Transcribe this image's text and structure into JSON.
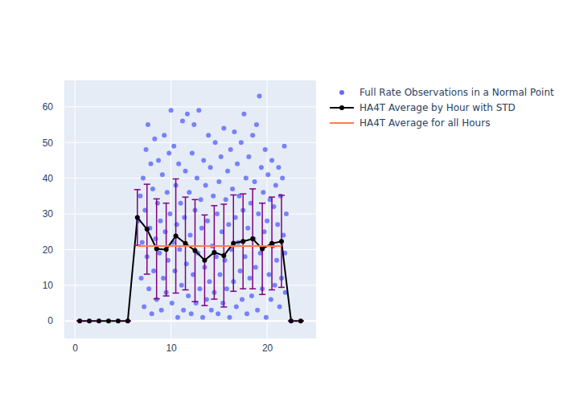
{
  "chart_data": {
    "type": "scatter",
    "xlim": [
      -1.1,
      25.1
    ],
    "xticks": [
      0,
      10,
      20
    ],
    "ylim": [
      -4.7,
      67.4
    ],
    "yticks": [
      0,
      10,
      20,
      30,
      40,
      50,
      60
    ],
    "grid": true,
    "legend": "outside-right",
    "series": [
      {
        "name": "Full Rate Observations in a Normal Point",
        "type": "scatter",
        "marker": "circle",
        "color": "#636efa",
        "x": [
          6.6,
          6.8,
          6.9,
          7.0,
          7.1,
          7.2,
          7.3,
          7.4,
          7.5,
          7.6,
          7.7,
          7.8,
          7.9,
          8.0,
          8.1,
          8.2,
          8.3,
          8.4,
          8.5,
          8.6,
          8.7,
          8.8,
          8.9,
          9.0,
          9.1,
          9.2,
          9.3,
          9.4,
          9.5,
          9.6,
          9.7,
          9.8,
          9.9,
          10.0,
          10.1,
          10.2,
          10.3,
          10.4,
          10.5,
          10.6,
          10.7,
          10.8,
          10.9,
          11.0,
          11.1,
          11.2,
          11.3,
          11.4,
          11.5,
          11.6,
          11.7,
          11.8,
          11.9,
          12.0,
          12.1,
          12.2,
          12.3,
          12.4,
          12.5,
          12.6,
          12.7,
          12.8,
          12.9,
          13.0,
          13.1,
          13.2,
          13.3,
          13.4,
          13.5,
          13.6,
          13.7,
          13.8,
          13.9,
          14.0,
          14.1,
          14.2,
          14.3,
          14.4,
          14.5,
          14.6,
          14.7,
          14.8,
          14.9,
          15.0,
          15.1,
          15.2,
          15.3,
          15.4,
          15.5,
          15.6,
          15.7,
          15.8,
          15.9,
          16.0,
          16.1,
          16.2,
          16.3,
          16.4,
          16.5,
          16.6,
          16.7,
          16.8,
          16.9,
          17.0,
          17.1,
          17.2,
          17.3,
          17.4,
          17.5,
          17.6,
          17.7,
          17.8,
          17.9,
          18.0,
          18.1,
          18.2,
          18.3,
          18.4,
          18.5,
          18.6,
          18.7,
          18.8,
          18.9,
          19.0,
          19.1,
          19.2,
          19.3,
          19.4,
          19.5,
          19.6,
          19.7,
          19.8,
          19.9,
          20.0,
          20.1,
          20.2,
          20.3,
          20.4,
          20.5,
          20.6,
          20.7,
          20.8,
          20.9,
          21.0,
          21.1,
          21.2,
          21.3,
          21.4,
          21.5,
          21.6,
          21.7,
          21.8,
          21.9,
          22.0,
          21.85
        ],
        "values": [
          28,
          35,
          12,
          22,
          40,
          4,
          31,
          48,
          18,
          55,
          9,
          26,
          44,
          2,
          37,
          14,
          51,
          23,
          6,
          33,
          45,
          19,
          28,
          3,
          41,
          12,
          52,
          25,
          8,
          36,
          17,
          47,
          30,
          59,
          5,
          22,
          49,
          14,
          38,
          27,
          1,
          44,
          20,
          33,
          10,
          56,
          3,
          29,
          42,
          16,
          58,
          7,
          36,
          24,
          2,
          47,
          13,
          55,
          31,
          5,
          40,
          19,
          59,
          9,
          34,
          26,
          1,
          45,
          15,
          38,
          6,
          28,
          52,
          11,
          43,
          3,
          21,
          35,
          8,
          50,
          18,
          30,
          2,
          39,
          13,
          46,
          25,
          5,
          54,
          17,
          34,
          9,
          42,
          27,
          1,
          48,
          20,
          37,
          11,
          53,
          29,
          4,
          44,
          22,
          35,
          14,
          50,
          6,
          31,
          58,
          18,
          40,
          2,
          26,
          46,
          12,
          33,
          7,
          52,
          23,
          39,
          15,
          55,
          3,
          30,
          63,
          19,
          43,
          9,
          36,
          25,
          48,
          1,
          28,
          41,
          13,
          34,
          6,
          45,
          21,
          32,
          10,
          38,
          17,
          27,
          43,
          4,
          35,
          12,
          40,
          24,
          49,
          8,
          30,
          19
        ]
      },
      {
        "name": "HA4T Average by Hour with STD",
        "type": "line",
        "marker": "circle",
        "color": "#000000",
        "x": [
          0.5,
          1.5,
          2.5,
          3.5,
          4.5,
          5.5,
          6.5,
          7.5,
          8.5,
          9.5,
          10.5,
          11.5,
          12.5,
          13.5,
          14.5,
          15.5,
          16.5,
          17.5,
          18.5,
          19.5,
          20.5,
          21.5,
          22.5,
          23.5
        ],
        "values": [
          0,
          0,
          0,
          0,
          0,
          0,
          29,
          25.7,
          20.2,
          20,
          23.8,
          21.7,
          19.7,
          17,
          19.2,
          18.3,
          21.8,
          22.3,
          23,
          20.2,
          21.7,
          22.3,
          0,
          0
        ],
        "error": [
          0,
          0,
          0,
          0,
          0,
          0,
          7.8,
          12.6,
          14,
          13,
          16,
          13,
          14.3,
          12.7,
          13.1,
          14.4,
          13.5,
          13.3,
          14,
          12.8,
          13,
          12.9,
          0,
          0
        ]
      },
      {
        "name": "HA4T Average for all Hours",
        "type": "line",
        "color": "#ff7f50",
        "x": [
          6.5,
          21.5
        ],
        "values": [
          21,
          21
        ]
      }
    ]
  }
}
